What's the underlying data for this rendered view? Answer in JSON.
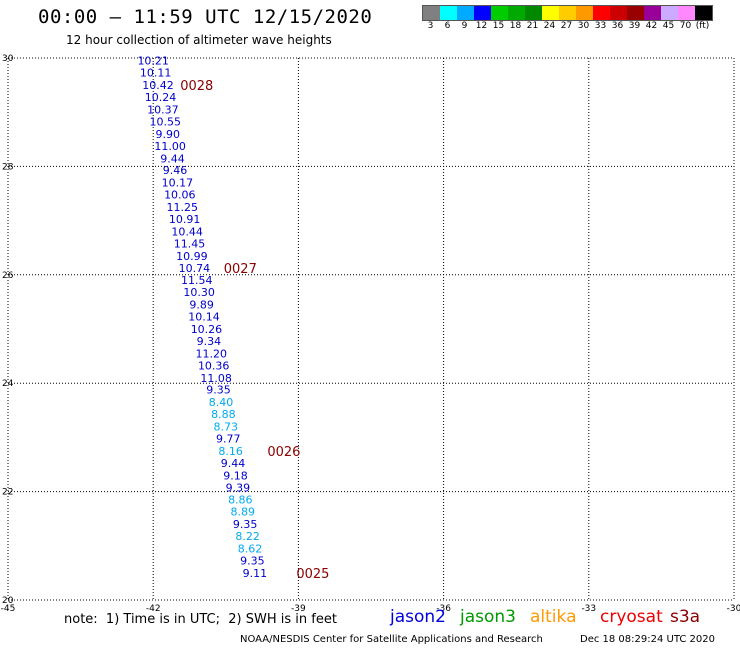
{
  "header": {
    "title": "00:00 – 11:59 UTC 12/15/2020",
    "subtitle": "12 hour collection of altimeter wave heights"
  },
  "colorbar": {
    "colors": [
      "#808080",
      "#00ffff",
      "#00aaff",
      "#0000ff",
      "#00cc00",
      "#00aa00",
      "#008800",
      "#ffff00",
      "#ffcc00",
      "#ff9900",
      "#ff0000",
      "#cc0000",
      "#990000",
      "#990099",
      "#ccaaff",
      "#ff88ff",
      "#000000"
    ],
    "labels": [
      "3",
      "6",
      "9",
      "12",
      "15",
      "18",
      "21",
      "24",
      "27",
      "30",
      "33",
      "36",
      "39",
      "42",
      "45",
      "70",
      "(ft)"
    ]
  },
  "chart_data": {
    "type": "scatter",
    "title": "",
    "xlabel": "",
    "ylabel": "",
    "xlim": [
      -45,
      -30
    ],
    "ylim": [
      20,
      30
    ],
    "grid": true,
    "x_ticks": [
      "-45",
      "-42",
      "-39",
      "-36",
      "-33",
      "-30"
    ],
    "y_ticks": [
      "20",
      "22",
      "24",
      "26",
      "28",
      "30"
    ],
    "points": [
      {
        "lon": -42.0,
        "lat": 29.95,
        "swh": "10.21",
        "color": "#0000cc"
      },
      {
        "lon": -41.95,
        "lat": 29.73,
        "swh": "10.11",
        "color": "#0000cc"
      },
      {
        "lon": -41.9,
        "lat": 29.5,
        "swh": "10.42",
        "color": "#0000cc"
      },
      {
        "lon": -41.85,
        "lat": 29.28,
        "swh": "10.24",
        "color": "#0000cc"
      },
      {
        "lon": -41.8,
        "lat": 29.05,
        "swh": "10.37",
        "color": "#0000cc"
      },
      {
        "lon": -41.75,
        "lat": 28.83,
        "swh": "10.55",
        "color": "#0000cc"
      },
      {
        "lon": -41.7,
        "lat": 28.6,
        "swh": "9.90",
        "color": "#0000cc"
      },
      {
        "lon": -41.65,
        "lat": 28.38,
        "swh": "11.00",
        "color": "#0000cc"
      },
      {
        "lon": -41.6,
        "lat": 28.15,
        "swh": "9.44",
        "color": "#0000cc"
      },
      {
        "lon": -41.55,
        "lat": 27.93,
        "swh": "9.46",
        "color": "#0000cc"
      },
      {
        "lon": -41.5,
        "lat": 27.7,
        "swh": "10.17",
        "color": "#0000cc"
      },
      {
        "lon": -41.45,
        "lat": 27.48,
        "swh": "10.06",
        "color": "#0000cc"
      },
      {
        "lon": -41.4,
        "lat": 27.25,
        "swh": "11.25",
        "color": "#0000cc"
      },
      {
        "lon": -41.35,
        "lat": 27.03,
        "swh": "10.91",
        "color": "#0000cc"
      },
      {
        "lon": -41.3,
        "lat": 26.8,
        "swh": "10.44",
        "color": "#0000cc"
      },
      {
        "lon": -41.25,
        "lat": 26.58,
        "swh": "11.45",
        "color": "#0000cc"
      },
      {
        "lon": -41.2,
        "lat": 26.35,
        "swh": "10.99",
        "color": "#0000cc"
      },
      {
        "lon": -41.15,
        "lat": 26.13,
        "swh": "10.74",
        "color": "#0000cc"
      },
      {
        "lon": -41.1,
        "lat": 25.9,
        "swh": "11.54",
        "color": "#0000cc"
      },
      {
        "lon": -41.05,
        "lat": 25.68,
        "swh": "10.30",
        "color": "#0000cc"
      },
      {
        "lon": -41.0,
        "lat": 25.45,
        "swh": "9.89",
        "color": "#0000cc"
      },
      {
        "lon": -40.95,
        "lat": 25.23,
        "swh": "10.14",
        "color": "#0000cc"
      },
      {
        "lon": -40.9,
        "lat": 25.0,
        "swh": "10.26",
        "color": "#0000cc"
      },
      {
        "lon": -40.85,
        "lat": 24.78,
        "swh": "9.34",
        "color": "#0000cc"
      },
      {
        "lon": -40.8,
        "lat": 24.55,
        "swh": "11.20",
        "color": "#0000cc"
      },
      {
        "lon": -40.75,
        "lat": 24.33,
        "swh": "10.36",
        "color": "#0000cc"
      },
      {
        "lon": -40.7,
        "lat": 24.1,
        "swh": "11.08",
        "color": "#0000cc"
      },
      {
        "lon": -40.65,
        "lat": 23.88,
        "swh": "9.35",
        "color": "#0000cc"
      },
      {
        "lon": -40.6,
        "lat": 23.65,
        "swh": "8.40",
        "color": "#00aaee"
      },
      {
        "lon": -40.55,
        "lat": 23.43,
        "swh": "8.88",
        "color": "#00aaee"
      },
      {
        "lon": -40.5,
        "lat": 23.2,
        "swh": "8.73",
        "color": "#00aaee"
      },
      {
        "lon": -40.45,
        "lat": 22.98,
        "swh": "9.77",
        "color": "#0000cc"
      },
      {
        "lon": -40.4,
        "lat": 22.75,
        "swh": "8.16",
        "color": "#00aaee"
      },
      {
        "lon": -40.35,
        "lat": 22.53,
        "swh": "9.44",
        "color": "#0000cc"
      },
      {
        "lon": -40.3,
        "lat": 22.3,
        "swh": "9.18",
        "color": "#0000cc"
      },
      {
        "lon": -40.25,
        "lat": 22.08,
        "swh": "9.39",
        "color": "#0000cc"
      },
      {
        "lon": -40.2,
        "lat": 21.85,
        "swh": "8.86",
        "color": "#00aaee"
      },
      {
        "lon": -40.15,
        "lat": 21.63,
        "swh": "8.89",
        "color": "#00aaee"
      },
      {
        "lon": -40.1,
        "lat": 21.4,
        "swh": "9.35",
        "color": "#0000cc"
      },
      {
        "lon": -40.05,
        "lat": 21.18,
        "swh": "8.22",
        "color": "#00aaee"
      },
      {
        "lon": -40.0,
        "lat": 20.95,
        "swh": "8.62",
        "color": "#00aaee"
      },
      {
        "lon": -39.95,
        "lat": 20.73,
        "swh": "9.35",
        "color": "#0000cc"
      },
      {
        "lon": -39.9,
        "lat": 20.5,
        "swh": "9.11",
        "color": "#0000cc"
      }
    ],
    "time_markers": [
      {
        "label": "0028",
        "lon": -41.1,
        "lat": 29.5
      },
      {
        "label": "0027",
        "lon": -40.2,
        "lat": 26.13
      },
      {
        "label": "0026",
        "lon": -39.3,
        "lat": 22.75
      },
      {
        "label": "0025",
        "lon": -38.7,
        "lat": 20.5
      }
    ],
    "marker_color": "#880000"
  },
  "footer": {
    "note": "note:  1) Time is in UTC;  2) SWH is in feet",
    "satellites": [
      {
        "name": "jason2",
        "color": "#0000dd"
      },
      {
        "name": "jason3",
        "color": "#009900"
      },
      {
        "name": "altika",
        "color": "#ff9900"
      },
      {
        "name": "cryosat",
        "color": "#ee0000"
      },
      {
        "name": "s3a",
        "color": "#880000"
      }
    ],
    "credit": "NOAA/NESDIS Center for Satellite Applications and Research",
    "timestamp": "Dec 18 08:29:24 UTC 2020"
  }
}
